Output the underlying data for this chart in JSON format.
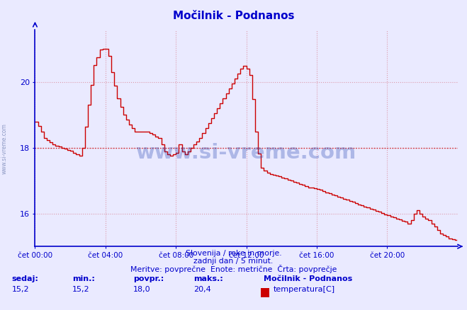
{
  "title": "Močilnik - Podnanos",
  "bg_color": "#eaeaff",
  "line_color": "#cc0000",
  "avg_value": 18.0,
  "y_min": 15.0,
  "y_max": 21.6,
  "x_ticks": [
    0,
    4,
    8,
    12,
    16,
    20
  ],
  "x_tick_labels": [
    "čet 00:00",
    "čet 04:00",
    "čet 08:00",
    "čet 12:00",
    "čet 16:00",
    "čet 20:00"
  ],
  "y_ticks": [
    16,
    18,
    20
  ],
  "grid_color": "#dd99aa",
  "title_color": "#0000cc",
  "axis_color": "#0000cc",
  "text_color": "#0000cc",
  "subtitle1": "Slovenija / reke in morje.",
  "subtitle2": "zadnji dan / 5 minut.",
  "subtitle3": "Meritve: povprečne  Enote: metrične  Črta: povprečje",
  "footer_label1": "sedaj:",
  "footer_label2": "min.:",
  "footer_label3": "povpr.:",
  "footer_label4": "maks.:",
  "footer_val1": "15,2",
  "footer_val2": "15,2",
  "footer_val3": "18,0",
  "footer_val4": "20,4",
  "footer_station": "Močilnik - Podnanos",
  "footer_series": "temperatura[C]",
  "legend_color": "#cc0000",
  "watermark_side": "www.si-vreme.com",
  "watermark_center": "www.si-vreme.com"
}
